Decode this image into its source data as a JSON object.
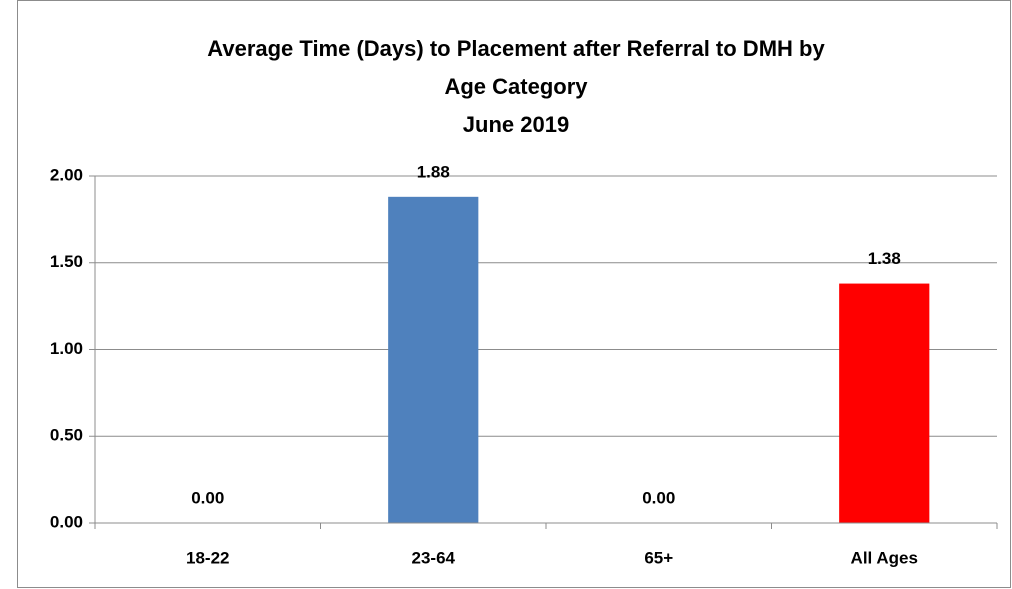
{
  "chart_data": {
    "type": "bar",
    "title": [
      "Average Time (Days) to Placement after Referral to DMH by",
      "Age Category"
    ],
    "subtitle": "June 2019",
    "categories": [
      "18-22",
      "23-64",
      "65+",
      "All Ages"
    ],
    "values": [
      0,
      1.88,
      0,
      1.38
    ],
    "value_labels": [
      "0.00",
      "1.88",
      "0.00",
      "1.38"
    ],
    "colors": [
      "#4f81bd",
      "#4f81bd",
      "#4f81bd",
      "#ff0000"
    ],
    "ylim": [
      0,
      2
    ],
    "yticks": [
      {
        "value": 0,
        "label": "0.00"
      },
      {
        "value": 0.5,
        "label": "0.50"
      },
      {
        "value": 1,
        "label": "1.00"
      },
      {
        "value": 1.5,
        "label": "1.50"
      },
      {
        "value": 2,
        "label": "2.00"
      }
    ],
    "grid": true
  }
}
